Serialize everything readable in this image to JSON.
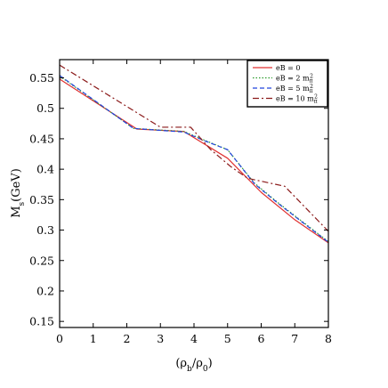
{
  "chart_data": {
    "type": "line",
    "xlabel": "(ρ_b/ρ_0)",
    "ylabel": "M_s(GeV)",
    "xlim": [
      0,
      8
    ],
    "ylim": [
      0.14,
      0.58
    ],
    "xticks": [
      0,
      1,
      2,
      3,
      4,
      5,
      6,
      7,
      8
    ],
    "yticks": [
      0.15,
      0.2,
      0.25,
      0.3,
      0.35,
      0.4,
      0.45,
      0.5,
      0.55
    ],
    "xtick_labels": [
      "0",
      "1",
      "2",
      "3",
      "4",
      "5",
      "6",
      "7",
      "8"
    ],
    "ytick_labels": [
      "0.15",
      "0.2",
      "0.25",
      "0.3",
      "0.35",
      "0.4",
      "0.45",
      "0.5",
      "0.55"
    ],
    "grid": false,
    "legend_position": "top-right",
    "series": [
      {
        "name": "eB = 0",
        "color": "#e03030",
        "dash": "solid",
        "x": [
          0,
          2.3,
          3.7,
          5.0,
          6.0,
          7.0,
          8.0
        ],
        "y": [
          0.548,
          0.466,
          0.462,
          0.418,
          0.362,
          0.317,
          0.279
        ]
      },
      {
        "name": "eB = 2 m_π²",
        "color": "#2a9a2a",
        "dash": "dotted",
        "x": [
          0,
          2.2,
          3.7,
          4.3,
          5.0,
          5.8,
          6.5,
          7.2,
          8.0
        ],
        "y": [
          0.553,
          0.467,
          0.462,
          0.448,
          0.432,
          0.377,
          0.345,
          0.315,
          0.281
        ]
      },
      {
        "name": "eB = 5 m_π²",
        "color": "#2244dd",
        "dash": "dashed",
        "x": [
          0,
          2.2,
          3.7,
          4.3,
          5.0,
          5.8,
          6.5,
          7.2,
          8.0
        ],
        "y": [
          0.554,
          0.467,
          0.461,
          0.447,
          0.432,
          0.376,
          0.344,
          0.314,
          0.28
        ]
      },
      {
        "name": "eB = 10 m_π²",
        "color": "#8b1a1a",
        "dash": "dashdot",
        "x": [
          0,
          3.0,
          3.9,
          4.5,
          5.1,
          5.6,
          6.7,
          8.0
        ],
        "y": [
          0.571,
          0.469,
          0.469,
          0.432,
          0.404,
          0.385,
          0.372,
          0.298
        ]
      }
    ]
  }
}
